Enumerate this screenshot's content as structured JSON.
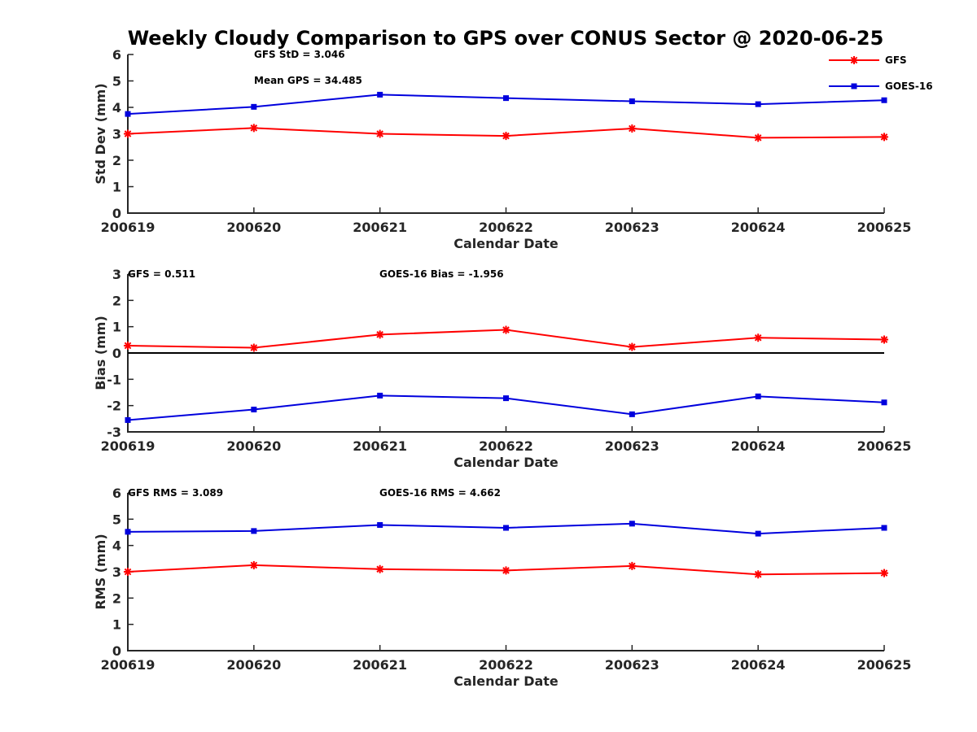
{
  "title": "Weekly Cloudy Comparison to GPS over CONUS Sector @ 2020-06-25",
  "colors": {
    "gfs": "#ff0000",
    "goes": "#0000dd",
    "axis": "#262626",
    "zero_line": "#000000"
  },
  "legend": [
    {
      "label": "GFS",
      "color": "#ff0000",
      "marker": "star"
    },
    {
      "label": "GOES-16",
      "color": "#0000dd",
      "marker": "square"
    }
  ],
  "chart_data": [
    {
      "type": "line",
      "categories": [
        "200619",
        "200620",
        "200621",
        "200622",
        "200623",
        "200624",
        "200625"
      ],
      "xlabel": "Calendar Date",
      "ylabel": "Std Dev (mm)",
      "ylim": [
        0,
        6
      ],
      "yticks": [
        "0",
        "1",
        "2",
        "3",
        "4",
        "5",
        "6"
      ],
      "annotations": [
        "GFS StD = 3.046",
        "Mean GPS = 34.485"
      ],
      "zero_line": false,
      "series": [
        {
          "name": "GFS",
          "color": "#ff0000",
          "marker": "star",
          "values": [
            3.0,
            3.22,
            3.0,
            2.92,
            3.2,
            2.85,
            2.88
          ]
        },
        {
          "name": "GOES-16",
          "color": "#0000dd",
          "marker": "square",
          "values": [
            3.75,
            4.02,
            4.48,
            4.35,
            4.23,
            4.12,
            4.27
          ]
        }
      ]
    },
    {
      "type": "line",
      "categories": [
        "200619",
        "200620",
        "200621",
        "200622",
        "200623",
        "200624",
        "200625"
      ],
      "xlabel": "Calendar Date",
      "ylabel": "Bias (mm)",
      "ylim": [
        -3,
        3
      ],
      "yticks": [
        "-3",
        "-2",
        "-1",
        "0",
        "1",
        "2",
        "3"
      ],
      "annotations": [
        "GFS = 0.511",
        "GOES-16 Bias  = -1.956"
      ],
      "zero_line": true,
      "series": [
        {
          "name": "GFS",
          "color": "#ff0000",
          "marker": "star",
          "values": [
            0.28,
            0.2,
            0.7,
            0.88,
            0.23,
            0.58,
            0.51
          ]
        },
        {
          "name": "GOES-16",
          "color": "#0000dd",
          "marker": "square",
          "values": [
            -2.55,
            -2.15,
            -1.62,
            -1.72,
            -2.33,
            -1.65,
            -1.88
          ]
        }
      ]
    },
    {
      "type": "line",
      "categories": [
        "200619",
        "200620",
        "200621",
        "200622",
        "200623",
        "200624",
        "200625"
      ],
      "xlabel": "Calendar Date",
      "ylabel": "RMS (mm)",
      "ylim": [
        0,
        6
      ],
      "yticks": [
        "0",
        "1",
        "2",
        "3",
        "4",
        "5",
        "6"
      ],
      "annotations": [
        "GFS RMS = 3.089",
        "GOES-16 RMS = 4.662"
      ],
      "zero_line": false,
      "series": [
        {
          "name": "GFS",
          "color": "#ff0000",
          "marker": "star",
          "values": [
            3.0,
            3.25,
            3.1,
            3.05,
            3.22,
            2.9,
            2.95
          ]
        },
        {
          "name": "GOES-16",
          "color": "#0000dd",
          "marker": "square",
          "values": [
            4.52,
            4.55,
            4.78,
            4.67,
            4.83,
            4.45,
            4.67
          ]
        }
      ]
    }
  ]
}
